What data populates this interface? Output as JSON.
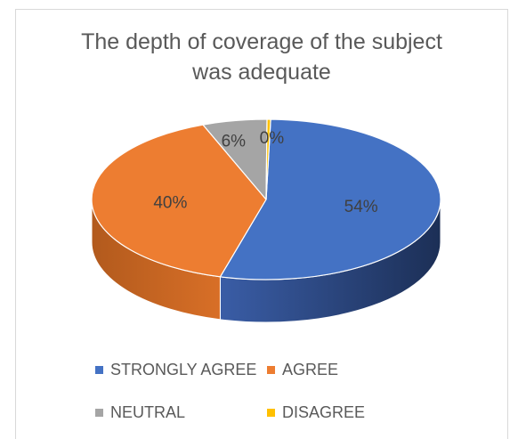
{
  "chart_data": {
    "type": "pie",
    "title": "The depth of coverage of the subject was adequate",
    "categories": [
      "STRONGLY AGREE",
      "AGREE",
      "NEUTRAL",
      "DISAGREE"
    ],
    "values": [
      54,
      40,
      6,
      0
    ],
    "labels": [
      "54%",
      "40%",
      "6%",
      "0%"
    ],
    "colors": [
      "#4472c4",
      "#ed7d31",
      "#a5a5a5",
      "#ffc000"
    ],
    "legend_position": "bottom",
    "style": "3d"
  },
  "legend": [
    {
      "label": "STRONGLY AGREE",
      "color": "#4472c4"
    },
    {
      "label": "AGREE",
      "color": "#ed7d31"
    },
    {
      "label": "NEUTRAL",
      "color": "#a5a5a5"
    },
    {
      "label": "DISAGREE",
      "color": "#ffc000"
    }
  ]
}
